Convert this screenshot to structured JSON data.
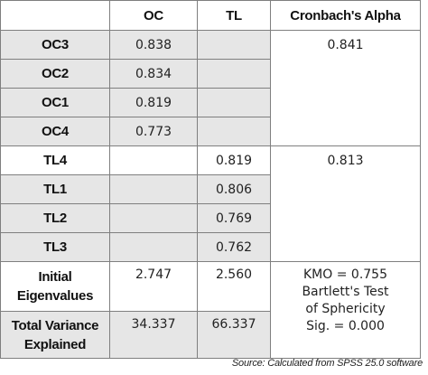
{
  "table": {
    "headers": [
      "",
      "OC",
      "TL",
      "Cronbach's Alpha"
    ],
    "rows": [
      {
        "label": "OC3",
        "oc": "0.838",
        "tl": ""
      },
      {
        "label": "OC2",
        "oc": "0.834",
        "tl": ""
      },
      {
        "label": "OC1",
        "oc": "0.819",
        "tl": ""
      },
      {
        "label": "OC4",
        "oc": "0.773",
        "tl": ""
      },
      {
        "label": "TL4",
        "oc": "",
        "tl": "0.819"
      },
      {
        "label": "TL1",
        "oc": "",
        "tl": "0.806"
      },
      {
        "label": "TL2",
        "oc": "",
        "tl": "0.769"
      },
      {
        "label": "TL3",
        "oc": "",
        "tl": "0.762"
      }
    ],
    "alpha_oc": "0.841",
    "alpha_tl": "0.813",
    "eigen": {
      "label_line1": "Initial",
      "label_line2": "Eigenvalues",
      "oc": "2.747",
      "tl": "2.560"
    },
    "variance": {
      "label_line1": "Total Variance",
      "label_line2": "Explained",
      "oc": "34.337",
      "tl": "66.337"
    },
    "kmo_lines": [
      "KMO = 0.755",
      "Bartlett's Test",
      "of Sphericity",
      "Sig. = 0.000"
    ]
  },
  "source": "Source: Calculated from SPSS 25.0 software"
}
